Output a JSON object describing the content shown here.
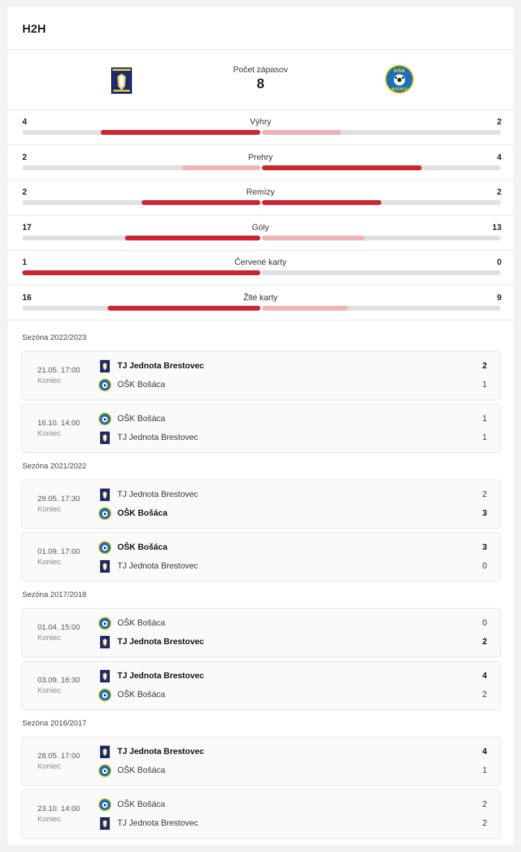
{
  "h2h": {
    "title": "H2H",
    "count_label": "Počet zápasov",
    "count_value": "8",
    "home_crest": "tj-jednota-brestovec-crest",
    "away_crest": "osk-bosaca-crest",
    "away_crest_lettering_top": "OŠK",
    "away_crest_lettering_bottom": "BOŠÁCA"
  },
  "stats": [
    {
      "name": "Výhry",
      "home": "4",
      "away": "2",
      "home_share": 0.67,
      "away_share": 0.33,
      "home_lead": true
    },
    {
      "name": "Prehry",
      "home": "2",
      "away": "4",
      "home_share": 0.33,
      "away_share": 0.67,
      "home_lead": false
    },
    {
      "name": "Remízy",
      "home": "2",
      "away": "2",
      "home_share": 0.5,
      "away_share": 0.5,
      "home_lead": true,
      "away_lead": true
    },
    {
      "name": "Góly",
      "home": "17",
      "away": "13",
      "home_share": 0.57,
      "away_share": 0.43,
      "home_lead": true
    },
    {
      "name": "Červené karty",
      "home": "1",
      "away": "0",
      "home_share": 1.0,
      "away_share": 0.0,
      "home_lead": true
    },
    {
      "name": "Žlté karty",
      "home": "16",
      "away": "9",
      "home_share": 0.64,
      "away_share": 0.36,
      "home_lead": true
    }
  ],
  "seasons": [
    {
      "label": "Sezóna 2022/2023",
      "matches": [
        {
          "date": "21.05. 17:00",
          "status": "Koniec",
          "teams": [
            {
              "name": "TJ Jednota Brestovec",
              "score": "2",
              "winner": true,
              "crest": "brestovec"
            },
            {
              "name": "OŠK Bošáca",
              "score": "1",
              "winner": false,
              "crest": "bosaca"
            }
          ]
        },
        {
          "date": "16.10. 14:00",
          "status": "Koniec",
          "teams": [
            {
              "name": "OŠK Bošáca",
              "score": "1",
              "winner": false,
              "crest": "bosaca"
            },
            {
              "name": "TJ Jednota Brestovec",
              "score": "1",
              "winner": false,
              "crest": "brestovec"
            }
          ]
        }
      ]
    },
    {
      "label": "Sezóna 2021/2022",
      "matches": [
        {
          "date": "29.05. 17:30",
          "status": "Koniec",
          "teams": [
            {
              "name": "TJ Jednota Brestovec",
              "score": "2",
              "winner": false,
              "crest": "brestovec"
            },
            {
              "name": "OŠK Bošáca",
              "score": "3",
              "winner": true,
              "crest": "bosaca"
            }
          ]
        },
        {
          "date": "01.09. 17:00",
          "status": "Koniec",
          "teams": [
            {
              "name": "OŠK Bošáca",
              "score": "3",
              "winner": true,
              "crest": "bosaca"
            },
            {
              "name": "TJ Jednota Brestovec",
              "score": "0",
              "winner": false,
              "crest": "brestovec"
            }
          ]
        }
      ]
    },
    {
      "label": "Sezóna 2017/2018",
      "matches": [
        {
          "date": "01.04. 15:00",
          "status": "Koniec",
          "teams": [
            {
              "name": "OŠK Bošáca",
              "score": "0",
              "winner": false,
              "crest": "bosaca"
            },
            {
              "name": "TJ Jednota Brestovec",
              "score": "2",
              "winner": true,
              "crest": "brestovec"
            }
          ]
        },
        {
          "date": "03.09. 16:30",
          "status": "Koniec",
          "teams": [
            {
              "name": "TJ Jednota Brestovec",
              "score": "4",
              "winner": true,
              "crest": "brestovec"
            },
            {
              "name": "OŠK Bošáca",
              "score": "2",
              "winner": false,
              "crest": "bosaca"
            }
          ]
        }
      ]
    },
    {
      "label": "Sezóna 2016/2017",
      "matches": [
        {
          "date": "28.05. 17:00",
          "status": "Koniec",
          "teams": [
            {
              "name": "TJ Jednota Brestovec",
              "score": "4",
              "winner": true,
              "crest": "brestovec"
            },
            {
              "name": "OŠK Bošáca",
              "score": "1",
              "winner": false,
              "crest": "bosaca"
            }
          ]
        },
        {
          "date": "23.10. 14:00",
          "status": "Koniec",
          "teams": [
            {
              "name": "OŠK Bošáca",
              "score": "2",
              "winner": false,
              "crest": "bosaca"
            },
            {
              "name": "TJ Jednota Brestovec",
              "score": "2",
              "winner": false,
              "crest": "brestovec"
            }
          ]
        }
      ]
    }
  ],
  "colors": {
    "bar_strong": "#cc2531",
    "bar_weak": "#efb4b7",
    "bar_track": "#e0e0e0",
    "brestovec_navy": "#1f2a6b",
    "bosaca_yellow": "#f2d21b"
  }
}
